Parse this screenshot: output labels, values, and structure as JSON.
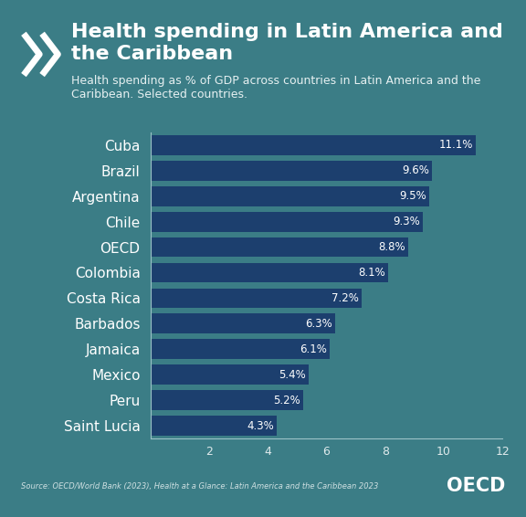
{
  "chart_data": {
    "type": "bar",
    "orientation": "horizontal",
    "title": "Health spending in Latin America and the Caribbean",
    "subtitle": "Health spending as % of GDP across countries in Latin America and the Caribbean. Selected countries.",
    "source": "Source: OECD/World Bank (2023), Health at a Glance: Latin America and the Caribbean 2023",
    "logo": "OECD",
    "categories": [
      "Cuba",
      "Brazil",
      "Argentina",
      "Chile",
      "OECD",
      "Colombia",
      "Costa Rica",
      "Barbados",
      "Jamaica",
      "Mexico",
      "Peru",
      "Saint Lucia"
    ],
    "values": [
      11.1,
      9.6,
      9.5,
      9.3,
      8.8,
      8.1,
      7.2,
      6.3,
      6.1,
      5.4,
      5.2,
      4.3
    ],
    "value_labels": [
      "11.1%",
      "9.6%",
      "9.5%",
      "9.3%",
      "8.8%",
      "8.1%",
      "7.2%",
      "6.3%",
      "6.1%",
      "5.4%",
      "5.2%",
      "4.3%"
    ],
    "color": "#1c3f6e",
    "xlim": [
      0,
      12
    ],
    "xticks": [
      2,
      4,
      6,
      8,
      10,
      12
    ],
    "grid": false,
    "data_labels": true
  }
}
